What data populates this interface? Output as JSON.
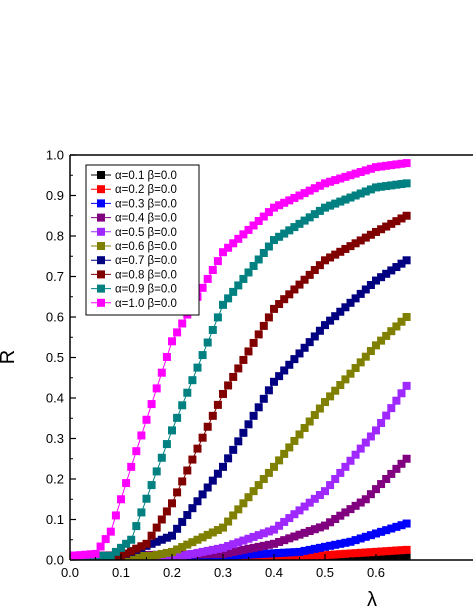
{
  "chart_data": {
    "type": "scatter",
    "title": "",
    "xlabel": "λ",
    "ylabel": "R",
    "xlim": [
      0.0,
      0.66
    ],
    "ylim": [
      0.0,
      1.0
    ],
    "xticks": [
      "0.0",
      "0.1",
      "0.2",
      "0.3",
      "0.4",
      "0.5",
      "0.6"
    ],
    "yticks": [
      "0.0",
      "0.1",
      "0.2",
      "0.3",
      "0.4",
      "0.5",
      "0.6",
      "0.7",
      "0.8",
      "0.9",
      "1.0"
    ],
    "grid": false,
    "legend_position": "top-left",
    "marker": "square",
    "x_step": 0.01,
    "series": [
      {
        "name": "α=0.1 β=0.0",
        "color": "#000000",
        "x_points": [
          [
            0.0,
            0.01
          ],
          [
            0.3,
            0.01
          ],
          [
            0.66,
            0.01
          ]
        ]
      },
      {
        "name": "α=0.2 β=0.0",
        "color": "#ff0000",
        "x_points": [
          [
            0.0,
            0.01
          ],
          [
            0.36,
            0.01
          ],
          [
            0.5,
            0.012
          ],
          [
            0.66,
            0.025
          ]
        ]
      },
      {
        "name": "α=0.3 β=0.0",
        "color": "#0000ff",
        "x_points": [
          [
            0.0,
            0.01
          ],
          [
            0.3,
            0.01
          ],
          [
            0.45,
            0.02
          ],
          [
            0.55,
            0.045
          ],
          [
            0.66,
            0.09
          ]
        ]
      },
      {
        "name": "α=0.4 β=0.0",
        "color": "#800080",
        "x_points": [
          [
            0.0,
            0.01
          ],
          [
            0.3,
            0.015
          ],
          [
            0.4,
            0.04
          ],
          [
            0.5,
            0.085
          ],
          [
            0.58,
            0.15
          ],
          [
            0.66,
            0.25
          ]
        ]
      },
      {
        "name": "α=0.5 β=0.0",
        "color": "#9f28ff",
        "x_points": [
          [
            0.0,
            0.01
          ],
          [
            0.22,
            0.01
          ],
          [
            0.3,
            0.03
          ],
          [
            0.4,
            0.075
          ],
          [
            0.5,
            0.17
          ],
          [
            0.6,
            0.32
          ],
          [
            0.66,
            0.43
          ]
        ]
      },
      {
        "name": "α=0.6 β=0.0",
        "color": "#808000",
        "x_points": [
          [
            0.0,
            0.01
          ],
          [
            0.16,
            0.01
          ],
          [
            0.2,
            0.02
          ],
          [
            0.3,
            0.08
          ],
          [
            0.4,
            0.23
          ],
          [
            0.5,
            0.39
          ],
          [
            0.6,
            0.53
          ],
          [
            0.66,
            0.6
          ]
        ]
      },
      {
        "name": "α=0.7 β=0.0",
        "color": "#000080",
        "x_points": [
          [
            0.0,
            0.01
          ],
          [
            0.1,
            0.01
          ],
          [
            0.2,
            0.06
          ],
          [
            0.3,
            0.23
          ],
          [
            0.4,
            0.44
          ],
          [
            0.5,
            0.58
          ],
          [
            0.6,
            0.69
          ],
          [
            0.66,
            0.74
          ]
        ]
      },
      {
        "name": "α=0.8 β=0.0",
        "color": "#800000",
        "x_points": [
          [
            0.0,
            0.01
          ],
          [
            0.1,
            0.01
          ],
          [
            0.15,
            0.04
          ],
          [
            0.2,
            0.14
          ],
          [
            0.3,
            0.41
          ],
          [
            0.4,
            0.62
          ],
          [
            0.5,
            0.74
          ],
          [
            0.6,
            0.81
          ],
          [
            0.66,
            0.85
          ]
        ]
      },
      {
        "name": "α=0.9 β=0.0",
        "color": "#008080",
        "x_points": [
          [
            0.0,
            0.01
          ],
          [
            0.08,
            0.01
          ],
          [
            0.12,
            0.05
          ],
          [
            0.2,
            0.32
          ],
          [
            0.3,
            0.63
          ],
          [
            0.4,
            0.79
          ],
          [
            0.5,
            0.87
          ],
          [
            0.6,
            0.92
          ],
          [
            0.66,
            0.93
          ]
        ]
      },
      {
        "name": "α=1.0 β=0.0",
        "color": "#ff00ff",
        "x_points": [
          [
            0.0,
            0.01
          ],
          [
            0.05,
            0.015
          ],
          [
            0.08,
            0.07
          ],
          [
            0.12,
            0.23
          ],
          [
            0.2,
            0.54
          ],
          [
            0.3,
            0.76
          ],
          [
            0.4,
            0.87
          ],
          [
            0.5,
            0.93
          ],
          [
            0.6,
            0.97
          ],
          [
            0.66,
            0.98
          ]
        ]
      }
    ]
  }
}
